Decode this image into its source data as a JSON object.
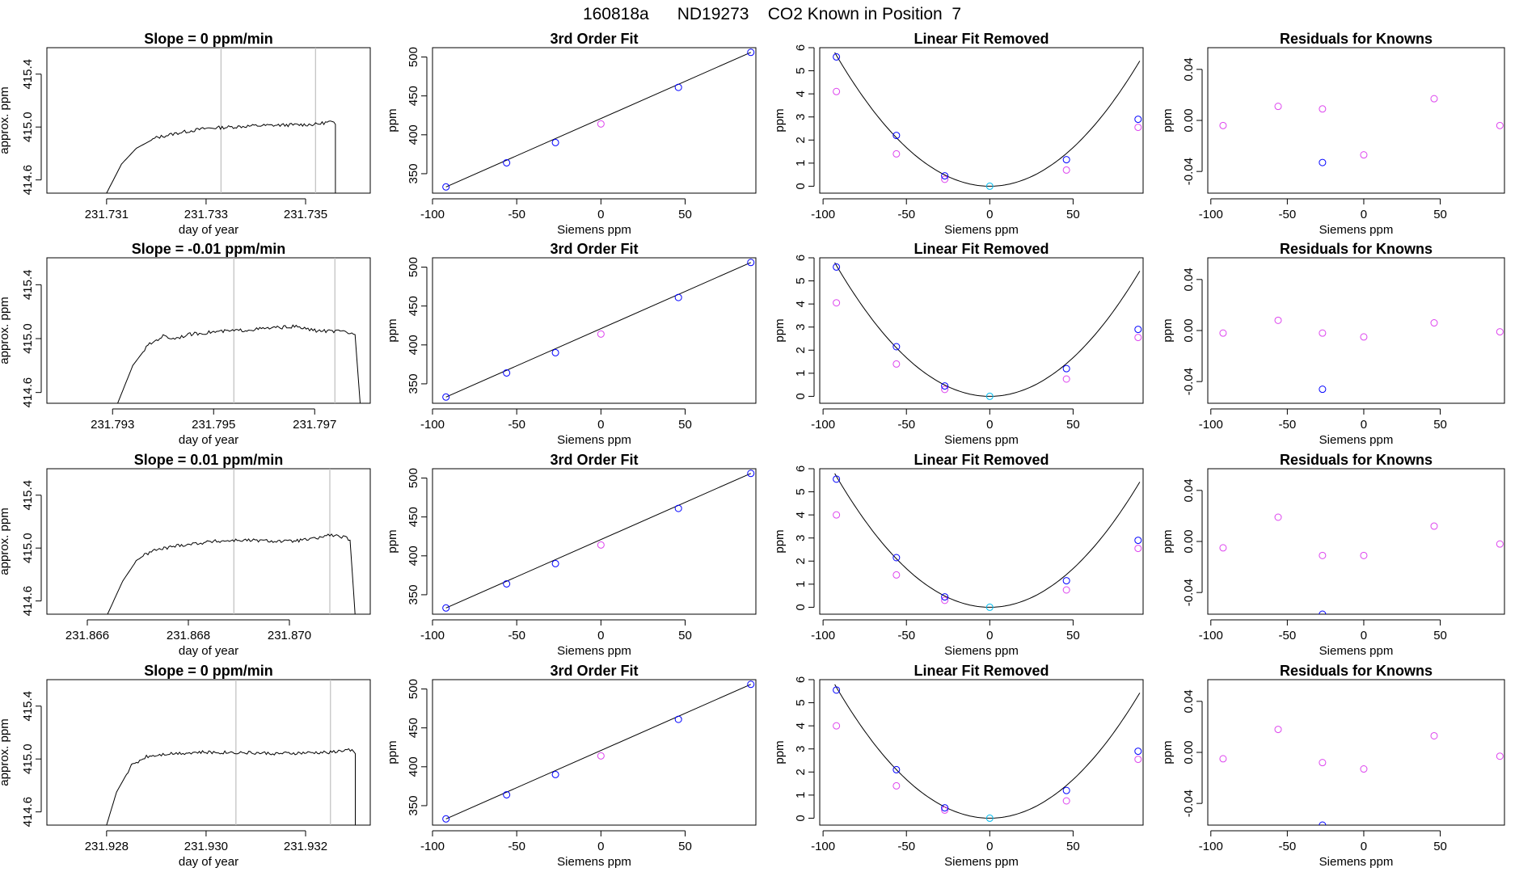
{
  "figure_title": "160818a      ND19273    CO2 Known in Position  7",
  "colors": {
    "fit_point": "#0000ff",
    "other_point": "#dd44ee",
    "center_point": "#00bbee",
    "line": "#000000",
    "gate_line": "#bfbfbf",
    "red_mark": "#ff0000"
  },
  "chart_data": [
    {
      "type": "line",
      "title": "Slope =  0  ppm/min",
      "xlabel": "day of year",
      "ylabel": "approx. ppm",
      "xlim": [
        231.7298,
        231.7363
      ],
      "ylim": [
        414.5,
        415.6
      ],
      "xticks": [
        231.731,
        231.733,
        231.735
      ],
      "xtick_labels": [
        "231.731",
        "231.733",
        "231.735"
      ],
      "yticks": [
        414.6,
        415.0,
        415.4
      ],
      "ytick_labels": [
        "414.6",
        "415.0",
        "415.4"
      ],
      "gate_lines": [
        231.7333,
        231.7352
      ],
      "trace": [
        [
          231.731,
          414.5
        ],
        [
          231.7313,
          414.72
        ],
        [
          231.7316,
          414.84
        ],
        [
          231.732,
          414.92
        ],
        [
          231.7325,
          414.96
        ],
        [
          231.733,
          414.99
        ],
        [
          231.734,
          415.01
        ],
        [
          231.7352,
          415.02
        ],
        [
          231.7355,
          415.04
        ],
        [
          231.7356,
          415.02
        ],
        [
          231.7356,
          414.5
        ]
      ]
    },
    {
      "type": "scatter",
      "title": "3rd Order Fit",
      "xlabel": "Siemens ppm",
      "ylabel": "ppm",
      "xlim": [
        -100,
        92
      ],
      "ylim": [
        325,
        512
      ],
      "xticks": [
        -100,
        -50,
        0,
        50
      ],
      "xtick_labels": [
        "-100",
        "-50",
        "0",
        "50"
      ],
      "yticks": [
        350,
        400,
        450,
        500
      ],
      "ytick_labels": [
        "350",
        "400",
        "450",
        "500"
      ],
      "blue_points": [
        [
          -92,
          333
        ],
        [
          -56,
          364
        ],
        [
          -27,
          390
        ],
        [
          46,
          461
        ],
        [
          89,
          506
        ]
      ],
      "magenta_points": [
        [
          0,
          414
        ]
      ],
      "fit_line": [
        [
          -92,
          333
        ],
        [
          89,
          506
        ]
      ]
    },
    {
      "type": "scatter",
      "title": "Linear Fit Removed",
      "xlabel": "Siemens ppm",
      "ylabel": "ppm",
      "xlim": [
        -102,
        92
      ],
      "ylim": [
        -0.3,
        6
      ],
      "xticks": [
        -100,
        -50,
        0,
        50
      ],
      "xtick_labels": [
        "-100",
        "-50",
        "0",
        "50"
      ],
      "yticks": [
        0,
        1,
        2,
        3,
        4,
        5,
        6
      ],
      "ytick_labels": [
        "0",
        "1",
        "2",
        "3",
        "4",
        "5",
        "6"
      ],
      "blue_points": [
        [
          -92,
          5.6
        ],
        [
          -56,
          2.2
        ],
        [
          -27,
          0.45
        ],
        [
          46,
          1.15
        ],
        [
          89,
          2.9
        ]
      ],
      "magenta_points": [
        [
          -92,
          4.1
        ],
        [
          -56,
          1.4
        ],
        [
          -27,
          0.3
        ],
        [
          46,
          0.7
        ],
        [
          89,
          2.55
        ]
      ],
      "center_point": [
        0,
        0
      ],
      "fit_curve": {
        "a": 0.00067,
        "b": 0,
        "c": 0
      }
    },
    {
      "type": "scatter",
      "title": "Residuals for Knowns",
      "xlabel": "Siemens ppm",
      "ylabel": "ppm",
      "xlim": [
        -102,
        92
      ],
      "ylim": [
        -0.057,
        0.057
      ],
      "xticks": [
        -100,
        -50,
        0,
        50
      ],
      "xtick_labels": [
        "-100",
        "-50",
        "0",
        "50"
      ],
      "yticks": [
        -0.04,
        0.0,
        0.04
      ],
      "ytick_labels": [
        "-0.04",
        "0.00",
        "0.04"
      ],
      "magenta_points": [
        [
          -92,
          -0.004
        ],
        [
          -56,
          0.011
        ],
        [
          0,
          -0.027
        ],
        [
          46,
          0.017
        ],
        [
          89,
          -0.004
        ],
        [
          -27,
          0.009
        ]
      ],
      "blue_points": [
        [
          -27,
          -0.033
        ]
      ]
    },
    {
      "type": "line",
      "title": "Slope =  -0.01  ppm/min",
      "xlabel": "day of year",
      "ylabel": "approx. ppm",
      "xlim": [
        231.7917,
        231.7981
      ],
      "ylim": [
        414.52,
        415.6
      ],
      "xticks": [
        231.793,
        231.795,
        231.797
      ],
      "xtick_labels": [
        "231.793",
        "231.795",
        "231.797"
      ],
      "yticks": [
        414.6,
        415.0,
        415.4
      ],
      "ytick_labels": [
        "414.6",
        "415.0",
        "415.4"
      ],
      "gate_lines": [
        231.7954,
        231.7974
      ],
      "trace": [
        [
          231.7931,
          414.52
        ],
        [
          231.7934,
          414.8
        ],
        [
          231.7937,
          414.95
        ],
        [
          231.794,
          415.02
        ],
        [
          231.7942,
          415.0
        ],
        [
          231.7945,
          415.03
        ],
        [
          231.795,
          415.05
        ],
        [
          231.7955,
          415.06
        ],
        [
          231.7962,
          415.08
        ],
        [
          231.7966,
          415.09
        ],
        [
          231.797,
          415.06
        ],
        [
          231.7976,
          415.05
        ],
        [
          231.7978,
          415.03
        ],
        [
          231.7979,
          414.52
        ]
      ]
    },
    {
      "type": "scatter",
      "title": "3rd Order Fit",
      "xlabel": "Siemens ppm",
      "ylabel": "ppm",
      "xlim": [
        -100,
        92
      ],
      "ylim": [
        325,
        512
      ],
      "xticks": [
        -100,
        -50,
        0,
        50
      ],
      "xtick_labels": [
        "-100",
        "-50",
        "0",
        "50"
      ],
      "yticks": [
        350,
        400,
        450,
        500
      ],
      "ytick_labels": [
        "350",
        "400",
        "450",
        "500"
      ],
      "blue_points": [
        [
          -92,
          333
        ],
        [
          -56,
          364
        ],
        [
          -27,
          390
        ],
        [
          46,
          461
        ],
        [
          89,
          506
        ]
      ],
      "magenta_points": [
        [
          0,
          414
        ]
      ],
      "fit_line": [
        [
          -92,
          333
        ],
        [
          89,
          506
        ]
      ]
    },
    {
      "type": "scatter",
      "title": "Linear Fit Removed",
      "xlabel": "Siemens ppm",
      "ylabel": "ppm",
      "xlim": [
        -102,
        92
      ],
      "ylim": [
        -0.3,
        6
      ],
      "xticks": [
        -100,
        -50,
        0,
        50
      ],
      "xtick_labels": [
        "-100",
        "-50",
        "0",
        "50"
      ],
      "yticks": [
        0,
        1,
        2,
        3,
        4,
        5,
        6
      ],
      "ytick_labels": [
        "0",
        "1",
        "2",
        "3",
        "4",
        "5",
        "6"
      ],
      "blue_points": [
        [
          -92,
          5.6
        ],
        [
          -56,
          2.15
        ],
        [
          -27,
          0.45
        ],
        [
          46,
          1.2
        ],
        [
          89,
          2.9
        ]
      ],
      "magenta_points": [
        [
          -92,
          4.05
        ],
        [
          -56,
          1.4
        ],
        [
          -27,
          0.3
        ],
        [
          46,
          0.75
        ],
        [
          89,
          2.55
        ]
      ],
      "center_point": [
        0,
        0
      ],
      "fit_curve": {
        "a": 0.00067,
        "b": 0,
        "c": 0
      }
    },
    {
      "type": "scatter",
      "title": "Residuals for Knowns",
      "xlabel": "Siemens ppm",
      "ylabel": "ppm",
      "xlim": [
        -102,
        92
      ],
      "ylim": [
        -0.057,
        0.057
      ],
      "xticks": [
        -100,
        -50,
        0,
        50
      ],
      "xtick_labels": [
        "-100",
        "-50",
        "0",
        "50"
      ],
      "yticks": [
        -0.04,
        0.0,
        0.04
      ],
      "ytick_labels": [
        "-0.04",
        "0.00",
        "0.04"
      ],
      "magenta_points": [
        [
          -92,
          -0.002
        ],
        [
          -56,
          0.008
        ],
        [
          -27,
          -0.002
        ],
        [
          0,
          -0.005
        ],
        [
          46,
          0.006
        ],
        [
          89,
          -0.001
        ]
      ],
      "blue_points": [
        [
          -27,
          -0.046
        ]
      ]
    },
    {
      "type": "line",
      "title": "Slope =  0.01  ppm/min",
      "xlabel": "day of year",
      "ylabel": "approx. ppm",
      "xlim": [
        231.8652,
        231.8716
      ],
      "ylim": [
        414.5,
        415.6
      ],
      "xticks": [
        231.866,
        231.868,
        231.87
      ],
      "xtick_labels": [
        "231.866",
        "231.868",
        "231.870"
      ],
      "yticks": [
        414.6,
        415.0,
        415.4
      ],
      "ytick_labels": [
        "414.6",
        "415.0",
        "415.4"
      ],
      "gate_lines": [
        231.8689,
        231.8708
      ],
      "trace": [
        [
          231.8664,
          414.5
        ],
        [
          231.8667,
          414.75
        ],
        [
          231.867,
          414.92
        ],
        [
          231.8673,
          414.98
        ],
        [
          231.8678,
          415.02
        ],
        [
          231.8685,
          415.05
        ],
        [
          231.869,
          415.06
        ],
        [
          231.87,
          415.05
        ],
        [
          231.8705,
          415.07
        ],
        [
          231.8708,
          415.1
        ],
        [
          231.8711,
          415.08
        ],
        [
          231.8712,
          415.06
        ],
        [
          231.8713,
          414.5
        ]
      ]
    },
    {
      "type": "scatter",
      "title": "3rd Order Fit",
      "xlabel": "Siemens ppm",
      "ylabel": "ppm",
      "xlim": [
        -100,
        92
      ],
      "ylim": [
        325,
        512
      ],
      "xticks": [
        -100,
        -50,
        0,
        50
      ],
      "xtick_labels": [
        "-100",
        "-50",
        "0",
        "50"
      ],
      "yticks": [
        350,
        400,
        450,
        500
      ],
      "ytick_labels": [
        "350",
        "400",
        "450",
        "500"
      ],
      "blue_points": [
        [
          -92,
          333
        ],
        [
          -56,
          364
        ],
        [
          -27,
          390
        ],
        [
          46,
          461
        ],
        [
          89,
          506
        ]
      ],
      "magenta_points": [
        [
          0,
          414
        ]
      ],
      "fit_line": [
        [
          -92,
          333
        ],
        [
          89,
          506
        ]
      ]
    },
    {
      "type": "scatter",
      "title": "Linear Fit Removed",
      "xlabel": "Siemens ppm",
      "ylabel": "ppm",
      "xlim": [
        -102,
        92
      ],
      "ylim": [
        -0.3,
        6
      ],
      "xticks": [
        -100,
        -50,
        0,
        50
      ],
      "xtick_labels": [
        "-100",
        "-50",
        "0",
        "50"
      ],
      "yticks": [
        0,
        1,
        2,
        3,
        4,
        5,
        6
      ],
      "ytick_labels": [
        "0",
        "1",
        "2",
        "3",
        "4",
        "5",
        "6"
      ],
      "blue_points": [
        [
          -92,
          5.55
        ],
        [
          -56,
          2.15
        ],
        [
          -27,
          0.45
        ],
        [
          46,
          1.15
        ],
        [
          89,
          2.9
        ]
      ],
      "magenta_points": [
        [
          -92,
          4.0
        ],
        [
          -56,
          1.4
        ],
        [
          -27,
          0.3
        ],
        [
          46,
          0.75
        ],
        [
          89,
          2.55
        ]
      ],
      "center_point": [
        0,
        0
      ],
      "fit_curve": {
        "a": 0.00067,
        "b": 0,
        "c": 0
      }
    },
    {
      "type": "scatter",
      "title": "Residuals for Knowns",
      "xlabel": "Siemens ppm",
      "ylabel": "ppm",
      "xlim": [
        -102,
        92
      ],
      "ylim": [
        -0.057,
        0.057
      ],
      "xticks": [
        -100,
        -50,
        0,
        50
      ],
      "xtick_labels": [
        "-100",
        "-50",
        "0",
        "50"
      ],
      "magenta_points": [
        [
          -92,
          -0.005
        ],
        [
          -56,
          0.019
        ],
        [
          -27,
          -0.011
        ],
        [
          0,
          -0.011
        ],
        [
          46,
          0.012
        ],
        [
          89,
          -0.002
        ]
      ],
      "blue_points": [
        [
          -27,
          -0.057
        ]
      ],
      "yticks": [
        -0.04,
        0.0,
        0.04
      ],
      "ytick_labels": [
        "-0.04",
        "0.00",
        "0.04"
      ]
    },
    {
      "type": "line",
      "title": "Slope =  0  ppm/min",
      "xlabel": "day of year",
      "ylabel": "approx. ppm",
      "xlim": [
        231.9268,
        231.9333
      ],
      "ylim": [
        414.5,
        415.6
      ],
      "xticks": [
        231.928,
        231.93,
        231.932
      ],
      "xtick_labels": [
        "231.928",
        "231.930",
        "231.932"
      ],
      "yticks": [
        414.6,
        415.0,
        415.4
      ],
      "ytick_labels": [
        "414.6",
        "415.0",
        "415.4"
      ],
      "gate_lines": [
        231.9306,
        231.9325
      ],
      "trace": [
        [
          231.928,
          414.5
        ],
        [
          231.9282,
          414.75
        ],
        [
          231.9285,
          414.95
        ],
        [
          231.9288,
          415.02
        ],
        [
          231.9292,
          415.04
        ],
        [
          231.9298,
          415.05
        ],
        [
          231.9306,
          415.05
        ],
        [
          231.9315,
          415.04
        ],
        [
          231.9325,
          415.05
        ],
        [
          231.9329,
          415.07
        ],
        [
          231.933,
          415.04
        ],
        [
          231.933,
          414.5
        ]
      ]
    },
    {
      "type": "scatter",
      "title": "3rd Order Fit",
      "xlabel": "Siemens ppm",
      "ylabel": "ppm",
      "xlim": [
        -100,
        92
      ],
      "ylim": [
        325,
        512
      ],
      "xticks": [
        -100,
        -50,
        0,
        50
      ],
      "xtick_labels": [
        "-100",
        "-50",
        "0",
        "50"
      ],
      "yticks": [
        350,
        400,
        450,
        500
      ],
      "ytick_labels": [
        "350",
        "400",
        "450",
        "500"
      ],
      "blue_points": [
        [
          -92,
          333
        ],
        [
          -56,
          364
        ],
        [
          -27,
          390
        ],
        [
          46,
          461
        ],
        [
          89,
          506
        ]
      ],
      "magenta_points": [
        [
          0,
          414
        ]
      ],
      "fit_line": [
        [
          -92,
          333
        ],
        [
          89,
          506
        ]
      ]
    },
    {
      "type": "scatter",
      "title": "Linear Fit Removed",
      "xlabel": "Siemens ppm",
      "ylabel": "ppm",
      "xlim": [
        -102,
        92
      ],
      "ylim": [
        -0.3,
        6
      ],
      "xticks": [
        -100,
        -50,
        0,
        50
      ],
      "xtick_labels": [
        "-100",
        "-50",
        "0",
        "50"
      ],
      "yticks": [
        0,
        1,
        2,
        3,
        4,
        5,
        6
      ],
      "ytick_labels": [
        "0",
        "1",
        "2",
        "3",
        "4",
        "5",
        "6"
      ],
      "blue_points": [
        [
          -92,
          5.55
        ],
        [
          -56,
          2.1
        ],
        [
          -27,
          0.45
        ],
        [
          46,
          1.2
        ],
        [
          89,
          2.9
        ]
      ],
      "magenta_points": [
        [
          -92,
          4.0
        ],
        [
          -56,
          1.4
        ],
        [
          -27,
          0.35
        ],
        [
          46,
          0.75
        ],
        [
          89,
          2.55
        ]
      ],
      "center_point": [
        0,
        0
      ],
      "fit_curve": {
        "a": 0.00067,
        "b": 0,
        "c": 0
      }
    },
    {
      "type": "scatter",
      "title": "Residuals for Knowns",
      "xlabel": "Siemens ppm",
      "ylabel": "ppm",
      "xlim": [
        -102,
        92
      ],
      "ylim": [
        -0.057,
        0.057
      ],
      "xticks": [
        -100,
        -50,
        0,
        50
      ],
      "xtick_labels": [
        "-100",
        "-50",
        "0",
        "50"
      ],
      "yticks": [
        -0.04,
        0.0,
        0.04
      ],
      "ytick_labels": [
        "-0.04",
        "0.00",
        "0.04"
      ],
      "magenta_points": [
        [
          -92,
          -0.005
        ],
        [
          -56,
          0.018
        ],
        [
          -27,
          -0.008
        ],
        [
          0,
          -0.013
        ],
        [
          46,
          0.013
        ],
        [
          89,
          -0.003
        ]
      ],
      "blue_points": [
        [
          -27,
          -0.057
        ]
      ]
    }
  ]
}
